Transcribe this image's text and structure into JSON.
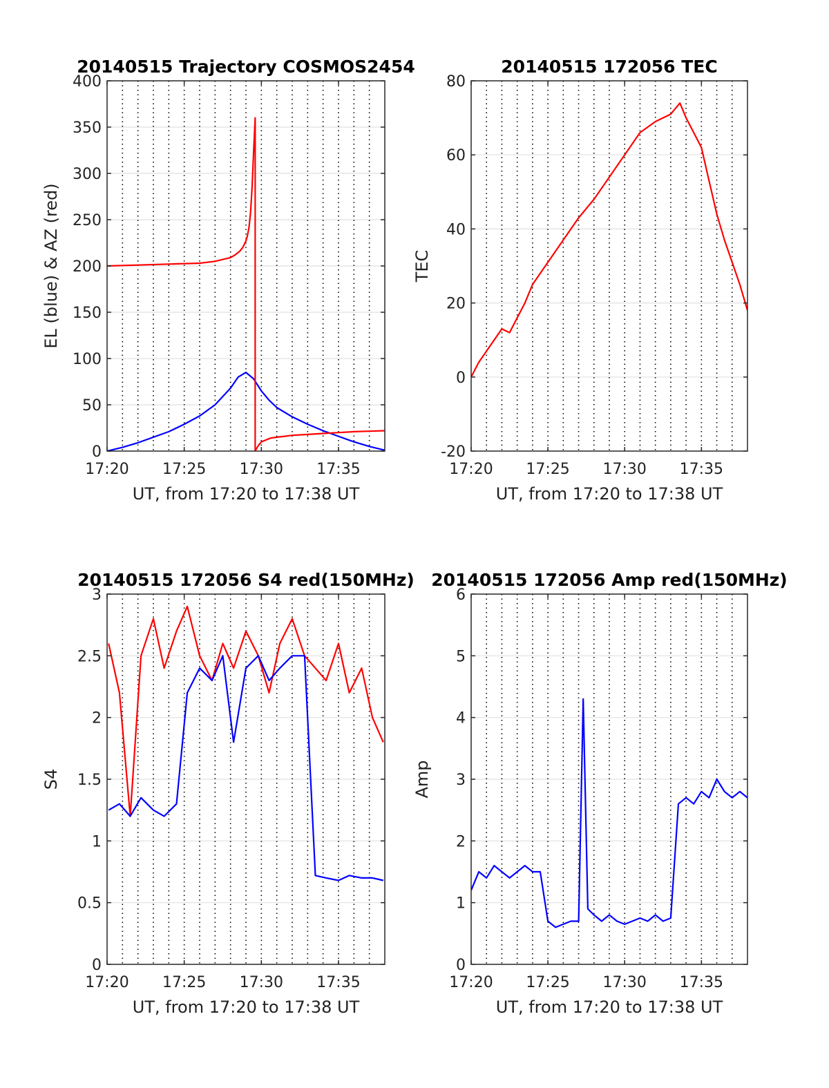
{
  "chart_data": [
    {
      "id": "traj",
      "type": "line",
      "title": "20140515 Trajectory COSMOS2454",
      "xlabel": "UT, from 17:20 to 17:38 UT",
      "ylabel": "EL (blue) & AZ (red)",
      "xlim": [
        0,
        18
      ],
      "ylim": [
        0,
        400
      ],
      "x_tick_labels": [
        "17:20",
        "17:25",
        "17:30",
        "17:35"
      ],
      "y_tick_labels": [
        "0",
        "50",
        "100",
        "150",
        "200",
        "250",
        "300",
        "350",
        "400"
      ],
      "grid": true,
      "colors": {
        "blue": "#0000ff",
        "red": "#ff0000"
      },
      "series": [
        {
          "color": "#0000ff",
          "x": [
            0.0,
            1.0,
            2.0,
            3.0,
            4.0,
            5.0,
            6.0,
            7.0,
            8.0,
            8.5,
            9.0,
            9.5,
            10.0,
            10.5,
            11.0,
            12.0,
            13.0,
            14.0,
            15.0,
            16.0,
            17.0,
            18.0
          ],
          "y": [
            0,
            4,
            9,
            15,
            21,
            29,
            38,
            50,
            68,
            80,
            85,
            78,
            65,
            55,
            47,
            37,
            29,
            22,
            16,
            10,
            5,
            1
          ]
        },
        {
          "color": "#ff0000",
          "x": [
            0.0,
            2.0,
            4.0,
            6.0,
            7.0,
            7.5,
            8.0,
            8.3,
            8.6,
            8.8,
            9.0,
            9.1,
            9.2,
            9.3,
            9.4,
            9.5,
            9.6,
            9.6,
            9.7,
            9.8,
            10.0,
            10.3,
            10.6,
            11.0,
            11.5,
            12.0,
            13.0,
            14.0,
            15.0,
            16.0,
            17.0,
            18.0
          ],
          "y": [
            200,
            201,
            202,
            203,
            205,
            207,
            209,
            212,
            216,
            220,
            227,
            233,
            242,
            258,
            285,
            325,
            360,
            0,
            3,
            6,
            10,
            12,
            14,
            15,
            16,
            17,
            18,
            19,
            20,
            21,
            21.5,
            22
          ]
        }
      ]
    },
    {
      "id": "tec",
      "type": "line",
      "title": "20140515 172056 TEC",
      "xlabel": "UT, from 17:20 to 17:38 UT",
      "ylabel": "TEC",
      "xlim": [
        0,
        18
      ],
      "ylim": [
        -20,
        80
      ],
      "x_tick_labels": [
        "17:20",
        "17:25",
        "17:30",
        "17:35"
      ],
      "y_tick_labels": [
        "-20",
        "0",
        "20",
        "40",
        "60",
        "80"
      ],
      "grid": true,
      "series": [
        {
          "color": "#ff0000",
          "x": [
            0.0,
            0.5,
            1.0,
            1.5,
            2.0,
            2.5,
            3.0,
            3.5,
            4.0,
            5.0,
            6.0,
            7.0,
            8.0,
            9.0,
            10.0,
            11.0,
            12.0,
            13.0,
            13.6,
            14.0,
            14.5,
            15.0,
            15.5,
            16.0,
            16.5,
            17.0,
            17.5,
            18.0
          ],
          "y": [
            0,
            4,
            7,
            10,
            13,
            12,
            16,
            20,
            25,
            31,
            37,
            43,
            48,
            54,
            60,
            66,
            69,
            71,
            74,
            70,
            66,
            62,
            53,
            44,
            37,
            31,
            25,
            18
          ]
        }
      ]
    },
    {
      "id": "s4",
      "type": "line",
      "title": "20140515 172056 S4 red(150MHz)",
      "xlabel": "UT, from 17:20 to 17:38 UT",
      "ylabel": "S4",
      "xlim": [
        0,
        18
      ],
      "ylim": [
        0,
        3
      ],
      "x_tick_labels": [
        "17:20",
        "17:25",
        "17:30",
        "17:35"
      ],
      "y_tick_labels": [
        "0",
        "0.5",
        "1",
        "1.5",
        "2",
        "2.5",
        "3"
      ],
      "grid": true,
      "series": [
        {
          "color": "#ff0000",
          "x": [
            0.1,
            0.8,
            1.5,
            2.2,
            3.0,
            3.7,
            4.5,
            5.2,
            6.0,
            6.8,
            7.5,
            8.2,
            9.0,
            9.8,
            10.5,
            11.2,
            12.0,
            12.8,
            13.5,
            14.2,
            15.0,
            15.7,
            16.5,
            17.2,
            17.9
          ],
          "y": [
            2.6,
            2.2,
            1.2,
            2.5,
            2.8,
            2.4,
            2.7,
            2.9,
            2.5,
            2.3,
            2.6,
            2.4,
            2.7,
            2.5,
            2.2,
            2.6,
            2.8,
            2.5,
            2.4,
            2.3,
            2.6,
            2.2,
            2.4,
            2.0,
            1.8
          ]
        },
        {
          "color": "#0000ff",
          "x": [
            0.1,
            0.8,
            1.5,
            2.2,
            3.0,
            3.7,
            4.5,
            5.2,
            6.0,
            6.8,
            7.5,
            8.2,
            9.0,
            9.8,
            10.5,
            11.2,
            12.0,
            12.8,
            13.5,
            14.2,
            15.0,
            15.7,
            16.5,
            17.2,
            17.9
          ],
          "y": [
            1.25,
            1.3,
            1.2,
            1.35,
            1.25,
            1.2,
            1.3,
            2.2,
            2.4,
            2.3,
            2.5,
            1.8,
            2.4,
            2.5,
            2.3,
            2.4,
            2.5,
            2.5,
            0.72,
            0.7,
            0.68,
            0.72,
            0.7,
            0.7,
            0.68
          ]
        }
      ]
    },
    {
      "id": "amp",
      "type": "line",
      "title": "20140515 172056 Amp red(150MHz)",
      "xlabel": "UT, from 17:20 to 17:38 UT",
      "ylabel": "Amp",
      "xlim": [
        0,
        18
      ],
      "ylim": [
        0,
        6
      ],
      "x_tick_labels": [
        "17:20",
        "17:25",
        "17:30",
        "17:35"
      ],
      "y_tick_labels": [
        "0",
        "1",
        "2",
        "3",
        "4",
        "5",
        "6"
      ],
      "grid": true,
      "series": [
        {
          "color": "#0000ff",
          "x": [
            0.0,
            0.5,
            1.0,
            1.5,
            2.0,
            2.5,
            3.0,
            3.5,
            4.0,
            4.5,
            5.0,
            5.5,
            6.0,
            6.5,
            7.0,
            7.3,
            7.6,
            8.0,
            8.5,
            9.0,
            9.5,
            10.0,
            10.5,
            11.0,
            11.5,
            12.0,
            12.5,
            13.0,
            13.5,
            14.0,
            14.5,
            15.0,
            15.5,
            16.0,
            16.5,
            17.0,
            17.5,
            18.0
          ],
          "y": [
            1.2,
            1.5,
            1.4,
            1.6,
            1.5,
            1.4,
            1.5,
            1.6,
            1.5,
            1.5,
            0.7,
            0.6,
            0.65,
            0.7,
            0.7,
            4.3,
            0.9,
            0.8,
            0.7,
            0.8,
            0.7,
            0.65,
            0.7,
            0.75,
            0.7,
            0.8,
            0.7,
            0.75,
            2.6,
            2.7,
            2.6,
            2.8,
            2.7,
            3.0,
            2.8,
            2.7,
            2.8,
            2.7
          ]
        }
      ]
    }
  ]
}
